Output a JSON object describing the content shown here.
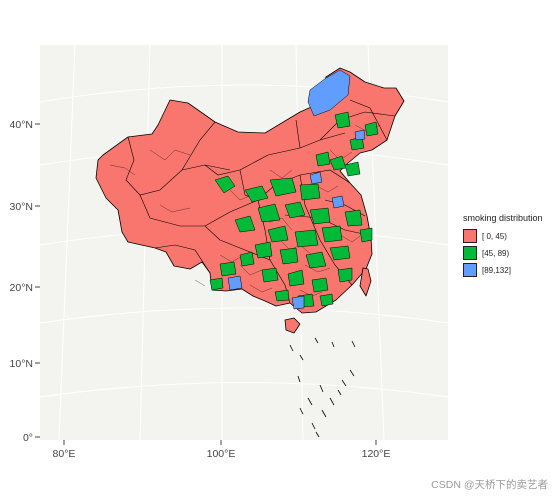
{
  "map": {
    "lat_labels": [
      "40°N",
      "30°N",
      "20°N",
      "10°N",
      "0°"
    ],
    "lon_labels": [
      "80°E",
      "100°E",
      "120°E"
    ]
  },
  "legend": {
    "title": "smoking distribution",
    "items": [
      {
        "label": "[ 0, 45)",
        "color": "#F8766D"
      },
      {
        "label": "[45, 89)",
        "color": "#00BA38"
      },
      {
        "label": "[89,132]",
        "color": "#619CFF"
      }
    ]
  },
  "colors": {
    "panel_background": "#F3F3EF",
    "graticule": "#FFFFFF",
    "border": "#000000"
  },
  "watermark": "CSDN @天桥下的卖艺者"
}
